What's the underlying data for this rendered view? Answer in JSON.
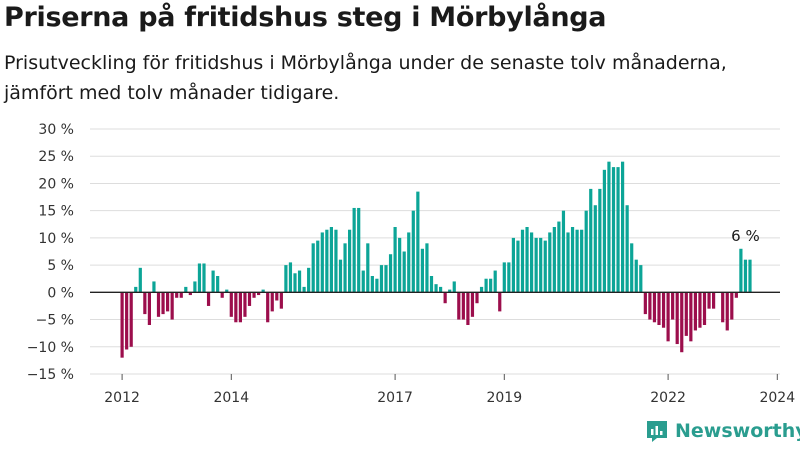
{
  "title": "Priserna på fritidshus steg i Mörbylånga",
  "subtitle": "Prisutveckling för fritidshus i Mörbylånga under de senaste tolv månaderna, jämfört med tolv månader tidigare.",
  "logo_text": "Newsworthy",
  "colors": {
    "positive": "#0ca597",
    "negative": "#9c0e4c",
    "grid": "#dddddd",
    "zero": "#222222",
    "brand": "#2a9d8f"
  },
  "chart_data": {
    "type": "bar",
    "ylim": [
      -15,
      30
    ],
    "yticks": [
      -15,
      -10,
      -5,
      0,
      5,
      10,
      15,
      20,
      25,
      30
    ],
    "ytick_labels": [
      "−15 %",
      "−10 %",
      "−5 %",
      "0 %",
      "5 %",
      "10 %",
      "15 %",
      "20 %",
      "25 %",
      "30 %"
    ],
    "x_start": "2012-01",
    "xticks": [
      "2012",
      "2014",
      "2017",
      "2019",
      "2022",
      "2024"
    ],
    "annotation": "6 %",
    "values": [
      -12,
      -10.5,
      -10,
      1,
      4.5,
      -4,
      -6,
      2,
      -4.5,
      -4,
      -3.5,
      -5,
      -1,
      -1,
      1,
      -0.5,
      2,
      5.3,
      5.3,
      -2.5,
      4,
      3,
      -1,
      0.5,
      -4.5,
      -5.5,
      -5.5,
      -4.5,
      -2.5,
      -1,
      -0.5,
      0.5,
      -5.5,
      -3.5,
      -1.5,
      -3,
      5,
      5.5,
      3.5,
      4,
      1,
      4.5,
      9,
      9.5,
      11,
      11.5,
      12,
      11.5,
      6,
      9,
      11.5,
      15.5,
      15.5,
      4,
      9,
      3,
      2.5,
      5,
      5,
      7,
      12,
      10,
      7.5,
      11,
      15,
      18.5,
      8,
      9,
      3,
      1.5,
      1,
      -2,
      0.5,
      2,
      -5,
      -5,
      -6,
      -4.5,
      -2,
      1,
      2.5,
      2.5,
      4,
      -3.5,
      5.5,
      5.5,
      10,
      9.5,
      11.5,
      12,
      11,
      10,
      10,
      9.5,
      11,
      12,
      13,
      15,
      11,
      12,
      11.5,
      11.5,
      15,
      19,
      16,
      19,
      22.5,
      24,
      23,
      23,
      24,
      16,
      9,
      6,
      5,
      -4,
      -5,
      -5.5,
      -6,
      -6.5,
      -9,
      -5,
      -9.5,
      -11,
      -8,
      -9,
      -7,
      -6.5,
      -6,
      -3,
      -3,
      0,
      -5.5,
      -7,
      -5,
      -1,
      8,
      6,
      6
    ]
  }
}
